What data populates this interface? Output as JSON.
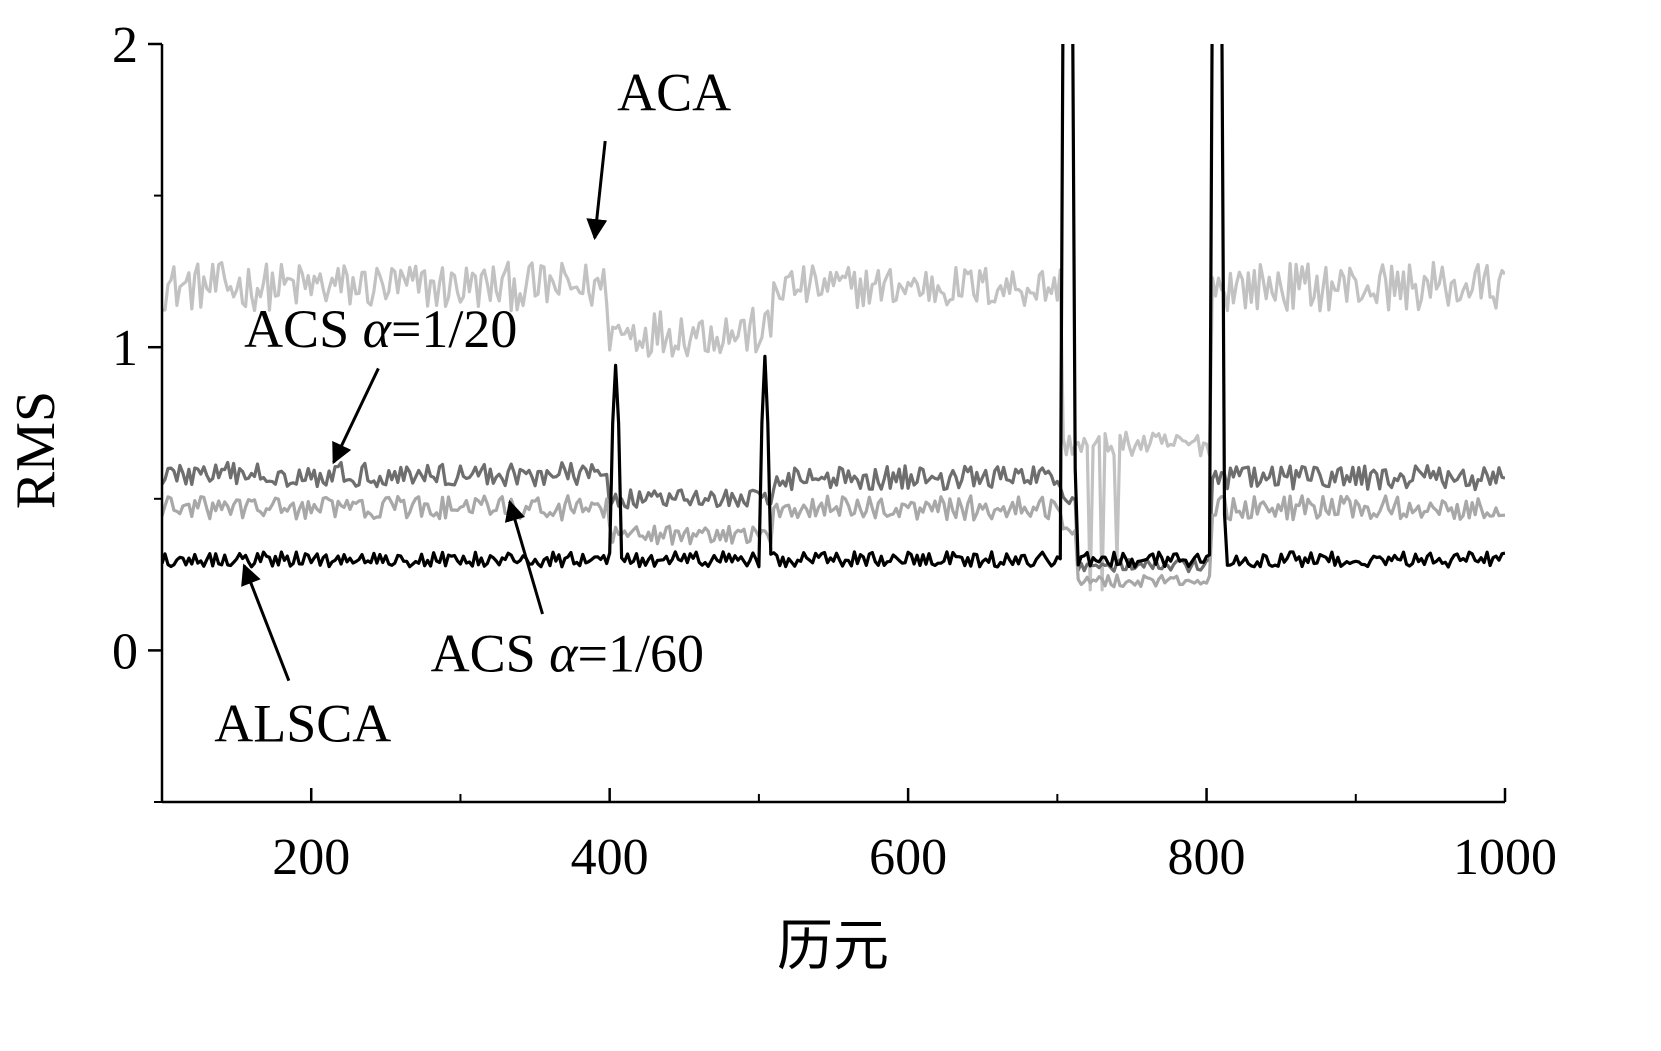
{
  "chart_data": {
    "type": "line",
    "xlabel": "历元",
    "ylabel": "RMS",
    "xlim": [
      100,
      1000
    ],
    "ylim": [
      -0.5,
      2
    ],
    "x_ticks": [
      200,
      400,
      600,
      800,
      1000
    ],
    "x_minor_ticks": [
      100,
      300,
      500,
      700,
      900
    ],
    "y_ticks": [
      0,
      1,
      2
    ],
    "y_minor_ticks": [
      -0.5,
      0.5,
      1.5
    ],
    "grid": false,
    "legend": "none",
    "series": [
      {
        "key": "aca",
        "color": "#c2c2c2",
        "base_segments": [
          {
            "from": 100,
            "to": 400,
            "level": 1.2,
            "noise": 0.08
          },
          {
            "from": 400,
            "to": 510,
            "level": 1.05,
            "noise": 0.08
          },
          {
            "from": 510,
            "to": 704,
            "level": 1.2,
            "noise": 0.07
          },
          {
            "from": 704,
            "to": 804,
            "level": 0.68,
            "noise": 0.04
          },
          {
            "from": 804,
            "to": 1000,
            "level": 1.2,
            "noise": 0.08
          }
        ],
        "spikes": [
          {
            "x": 722,
            "level": 0.2
          },
          {
            "x": 730,
            "level": 0.2
          },
          {
            "x": 740,
            "level": 0.3
          }
        ]
      },
      {
        "key": "acs_1_20",
        "color": "#6e6e6e",
        "base_segments": [
          {
            "from": 100,
            "to": 400,
            "level": 0.58,
            "noise": 0.04
          },
          {
            "from": 400,
            "to": 510,
            "level": 0.5,
            "noise": 0.03
          },
          {
            "from": 510,
            "to": 704,
            "level": 0.57,
            "noise": 0.04
          },
          {
            "from": 704,
            "to": 714,
            "level": 0.5,
            "noise": 0.02
          },
          {
            "from": 714,
            "to": 804,
            "level": 0.28,
            "noise": 0.02
          },
          {
            "from": 804,
            "to": 1000,
            "level": 0.57,
            "noise": 0.04
          }
        ],
        "spikes": []
      },
      {
        "key": "acs_1_60",
        "color": "#a8a8a8",
        "base_segments": [
          {
            "from": 100,
            "to": 400,
            "level": 0.47,
            "noise": 0.04
          },
          {
            "from": 400,
            "to": 510,
            "level": 0.38,
            "noise": 0.03
          },
          {
            "from": 510,
            "to": 704,
            "level": 0.47,
            "noise": 0.04
          },
          {
            "from": 704,
            "to": 714,
            "level": 0.4,
            "noise": 0.02
          },
          {
            "from": 714,
            "to": 804,
            "level": 0.23,
            "noise": 0.02
          },
          {
            "from": 804,
            "to": 1000,
            "level": 0.47,
            "noise": 0.04
          }
        ],
        "spikes": []
      },
      {
        "key": "alsca",
        "color": "#000000",
        "base_segments": [
          {
            "from": 100,
            "to": 1000,
            "level": 0.3,
            "noise": 0.025
          }
        ],
        "spikes": [
          {
            "x": 402,
            "level": 0.75
          },
          {
            "x": 404,
            "level": 0.94
          },
          {
            "x": 406,
            "level": 0.75
          },
          {
            "x": 502,
            "level": 0.75
          },
          {
            "x": 504,
            "level": 0.97
          },
          {
            "x": 506,
            "level": 0.75
          },
          {
            "x": 704,
            "level": 2.3
          },
          {
            "x": 706,
            "level": 2.3
          },
          {
            "x": 708,
            "level": 2.3
          },
          {
            "x": 710,
            "level": 2.3
          },
          {
            "x": 712,
            "level": 0.6
          },
          {
            "x": 804,
            "level": 2.3
          },
          {
            "x": 806,
            "level": 2.3
          },
          {
            "x": 808,
            "level": 2.3
          },
          {
            "x": 810,
            "level": 2.3
          },
          {
            "x": 812,
            "level": 0.45
          }
        ]
      }
    ],
    "annotations": [
      {
        "key": "aca",
        "text": "ACA",
        "text_x": 405,
        "text_y": 1.78,
        "arrow_from": [
          397,
          1.68
        ],
        "arrow_to": [
          390,
          1.36
        ]
      },
      {
        "key": "acs_1_20",
        "prefix": "ACS ",
        "alpha": "α",
        "suffix": "=1/20",
        "text_x": 155,
        "text_y": 1.0,
        "arrow_from": [
          245,
          0.93
        ],
        "arrow_to": [
          215,
          0.62
        ]
      },
      {
        "key": "acs_1_60",
        "prefix": "ACS ",
        "alpha": "α",
        "suffix": "=1/60",
        "text_x": 280,
        "text_y": -0.07,
        "arrow_from": [
          355,
          0.12
        ],
        "arrow_to": [
          333,
          0.49
        ]
      },
      {
        "key": "alsca",
        "text": "ALSCA",
        "text_x": 135,
        "text_y": -0.3,
        "arrow_from": [
          185,
          -0.1
        ],
        "arrow_to": [
          155,
          0.28
        ]
      }
    ]
  }
}
